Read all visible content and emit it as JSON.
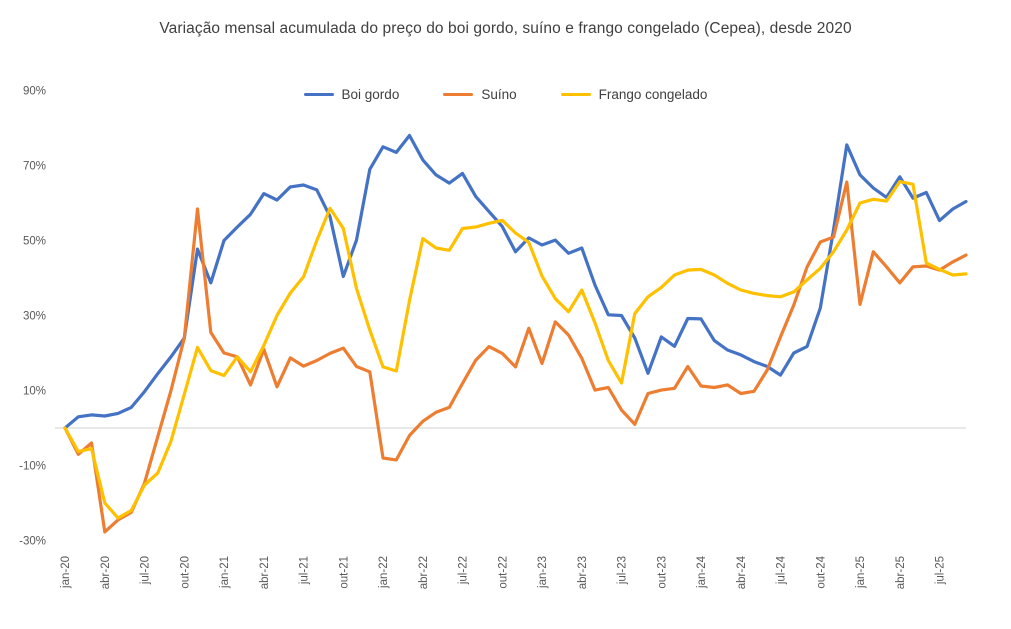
{
  "title": "Variação mensal acumulada do preço do boi gordo, suíno e frango congelado (Cepea), desde 2020",
  "legend": [
    {
      "label": "Boi gordo",
      "color": "#4472C4"
    },
    {
      "label": "Suíno",
      "color": "#ED7D31"
    },
    {
      "label": "Frango congelado",
      "color": "#FFC000"
    }
  ],
  "colors": {
    "background": "#FFFFFF",
    "title_text": "#404040",
    "tick_text": "#595959",
    "zero_gridline": "#D9D9D9"
  },
  "chart_data": {
    "type": "line",
    "title": "Variação mensal acumulada do preço do boi gordo, suíno e frango congelado (Cepea), desde 2020",
    "xlabel": "",
    "ylabel": "",
    "ylim": [
      -35,
      95
    ],
    "grid": "zero-line-only",
    "legend_position": "top",
    "y_ticks": [
      "90%",
      "70%",
      "50%",
      "30%",
      "10%",
      "-10%",
      "-30%"
    ],
    "y_tick_values": [
      90,
      70,
      50,
      30,
      10,
      -10,
      -30
    ],
    "x_tick_step": 3,
    "categories": [
      "jan-20",
      "fev-20",
      "mar-20",
      "abr-20",
      "mai-20",
      "jun-20",
      "jul-20",
      "ago-20",
      "set-20",
      "out-20",
      "nov-20",
      "dez-20",
      "jan-21",
      "fev-21",
      "mar-21",
      "abr-21",
      "mai-21",
      "jun-21",
      "jul-21",
      "ago-21",
      "set-21",
      "out-21",
      "nov-21",
      "dez-21",
      "jan-22",
      "fev-22",
      "mar-22",
      "abr-22",
      "mai-22",
      "jun-22",
      "jul-22",
      "ago-22",
      "set-22",
      "out-22",
      "nov-22",
      "dez-22",
      "jan-23",
      "fev-23",
      "mar-23",
      "abr-23",
      "mai-23",
      "jun-23",
      "jul-23",
      "ago-23",
      "set-23",
      "out-23",
      "nov-23",
      "dez-23",
      "jan-24",
      "fev-24",
      "mar-24",
      "abr-24",
      "mai-24",
      "jun-24",
      "jul-24",
      "ago-24",
      "set-24",
      "out-24",
      "nov-24",
      "dez-24",
      "jan-25",
      "fev-25",
      "mar-25",
      "abr-25",
      "mai-25",
      "jun-25",
      "jul-25",
      "ago-25",
      "set-25"
    ],
    "series": [
      {
        "name": "Boi gordo",
        "color": "#4472C4",
        "values": [
          0,
          3,
          3.5,
          3.2,
          3.9,
          5.5,
          9.7,
          14.5,
          19,
          24,
          47.7,
          38.7,
          50,
          53.6,
          57,
          62.5,
          60.8,
          64.3,
          64.8,
          63.5,
          56.4,
          40.4,
          50.1,
          69,
          75,
          73.5,
          78,
          71.5,
          67.5,
          65.3,
          67.9,
          61.7,
          57.7,
          53.7,
          47,
          50.7,
          48.8,
          50.1,
          46.6,
          48,
          38.1,
          30.2,
          30,
          24,
          14.6,
          24.3,
          21.8,
          29.2,
          29.1,
          23.3,
          20.8,
          19.5,
          17.7,
          16.4,
          14.1,
          20,
          21.7,
          32,
          52.8,
          75.5,
          67.5,
          64,
          61.5,
          67,
          61.3,
          62.8,
          55.3,
          58.4,
          60.4
        ]
      },
      {
        "name": "Suíno",
        "color": "#ED7D31",
        "values": [
          0,
          -7,
          -4,
          -27.7,
          -24.5,
          -22.5,
          -14.7,
          -2.3,
          10,
          24,
          58.4,
          25.5,
          20,
          19,
          11.5,
          21,
          11,
          18.7,
          16.5,
          18,
          19.9,
          21.3,
          16.4,
          15,
          -8,
          -8.5,
          -2,
          1.8,
          4.2,
          5.5,
          11.9,
          18.1,
          21.7,
          19.9,
          16.3,
          26.6,
          17.2,
          28.3,
          24.8,
          18.6,
          10.1,
          10.8,
          4.8,
          1,
          9.2,
          10.1,
          10.6,
          16.4,
          11.2,
          10.8,
          11.5,
          9.2,
          9.8,
          15.5,
          24.3,
          32.8,
          42.9,
          49.6,
          50.9,
          65.6,
          33,
          47,
          43,
          38.7,
          43,
          43.2,
          42.1,
          44.3,
          46.1
        ]
      },
      {
        "name": "Frango congelado",
        "color": "#FFC000",
        "values": [
          0,
          -6.3,
          -5.5,
          -20,
          -24,
          -22,
          -15.2,
          -12,
          -3.5,
          9,
          21.5,
          15.3,
          14,
          19,
          15,
          22,
          30,
          36,
          40.3,
          50,
          58.6,
          53.2,
          37.2,
          26.1,
          16.3,
          15.2,
          34,
          50.5,
          48,
          47.4,
          53.2,
          53.6,
          54.6,
          55.4,
          52,
          49.5,
          40.5,
          34.5,
          31,
          36.8,
          28,
          18,
          12,
          30.5,
          35,
          37.5,
          40.8,
          42.1,
          42.3,
          40.8,
          38.6,
          36.8,
          35.9,
          35.3,
          35,
          36.3,
          39.5,
          42.6,
          47,
          52.8,
          60,
          61,
          60.5,
          65.7,
          65,
          44,
          42.3,
          40.8,
          41.1
        ]
      }
    ]
  }
}
